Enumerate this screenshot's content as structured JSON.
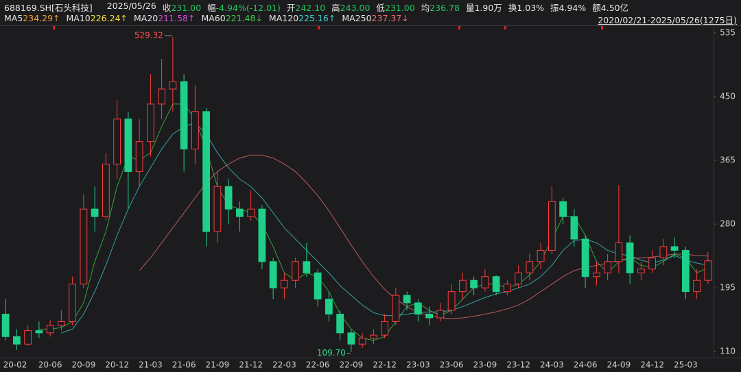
{
  "header": {
    "code": "688169.SH[石头科技]",
    "date": "2025/05/26",
    "quotes": [
      {
        "label": "收",
        "value": "231.00",
        "color": "#22c55e"
      },
      {
        "label": "幅",
        "value": "-4.94%(-12.01)",
        "color": "#22c55e"
      },
      {
        "label": "开",
        "value": "242.10",
        "color": "#22c55e"
      },
      {
        "label": "高",
        "value": "243.00",
        "color": "#22c55e"
      },
      {
        "label": "低",
        "value": "231.00",
        "color": "#22c55e"
      },
      {
        "label": "均",
        "value": "236.78",
        "color": "#22c55e"
      },
      {
        "label": "量",
        "value": "1.90万",
        "color": "#e6e6e6"
      },
      {
        "label": "换",
        "value": "1.03%",
        "color": "#e6e6e6"
      },
      {
        "label": "振",
        "value": "4.94%",
        "color": "#e6e6e6"
      },
      {
        "label": "额",
        "value": "4.50亿",
        "color": "#e6e6e6"
      }
    ],
    "range": "2020/02/21-2025/05/26(1275日)"
  },
  "chart_data": {
    "type": "candlestick",
    "categories": [
      "20-02",
      null,
      null,
      null,
      "20-06",
      null,
      null,
      "20-09",
      null,
      null,
      "20-12",
      null,
      null,
      "21-03",
      null,
      null,
      "21-06",
      null,
      null,
      "21-09",
      null,
      null,
      "21-12",
      null,
      null,
      "22-03",
      null,
      null,
      "22-06",
      null,
      null,
      "22-09",
      null,
      null,
      "22-12",
      null,
      null,
      "23-03",
      null,
      null,
      "23-06",
      null,
      null,
      "23-09",
      null,
      null,
      "23-12",
      null,
      null,
      "24-03",
      null,
      null,
      "24-06",
      null,
      null,
      "24-09",
      null,
      null,
      "24-12",
      null,
      null,
      "25-03",
      null,
      null
    ],
    "ohlc": {
      "open": [
        160,
        130,
        120,
        138,
        135,
        145,
        150,
        200,
        300,
        290,
        360,
        420,
        350,
        390,
        440,
        460,
        470,
        380,
        430,
        270,
        330,
        300,
        290,
        300,
        230,
        195,
        205,
        230,
        215,
        180,
        160,
        135,
        120,
        128,
        132,
        150,
        185,
        175,
        160,
        155,
        165,
        190,
        205,
        195,
        210,
        190,
        200,
        215,
        230,
        245,
        310,
        290,
        260,
        210,
        215,
        230,
        255,
        215,
        220,
        235,
        250,
        245,
        190,
        205
      ],
      "high": [
        180,
        140,
        145,
        150,
        152,
        165,
        210,
        320,
        330,
        375,
        445,
        430,
        420,
        480,
        500,
        529.32,
        480,
        465,
        435,
        350,
        340,
        310,
        325,
        305,
        235,
        215,
        235,
        255,
        220,
        190,
        165,
        140,
        135,
        140,
        160,
        195,
        190,
        180,
        170,
        175,
        200,
        215,
        210,
        220,
        212,
        205,
        225,
        240,
        255,
        330,
        315,
        300,
        265,
        230,
        240,
        332,
        265,
        230,
        245,
        260,
        262,
        250,
        220,
        243
      ],
      "low": [
        125,
        112,
        118,
        128,
        130,
        138,
        145,
        195,
        270,
        285,
        340,
        300,
        330,
        370,
        420,
        430,
        350,
        360,
        250,
        255,
        280,
        270,
        285,
        220,
        180,
        180,
        195,
        210,
        170,
        150,
        125,
        109.7,
        115,
        120,
        128,
        145,
        165,
        150,
        145,
        150,
        160,
        180,
        185,
        190,
        185,
        185,
        195,
        205,
        220,
        240,
        280,
        250,
        195,
        198,
        205,
        215,
        200,
        205,
        215,
        225,
        235,
        180,
        180,
        200
      ],
      "close": [
        130,
        120,
        138,
        135,
        145,
        150,
        200,
        300,
        290,
        360,
        420,
        350,
        390,
        440,
        460,
        470,
        380,
        430,
        270,
        330,
        300,
        290,
        300,
        230,
        195,
        205,
        230,
        215,
        180,
        160,
        135,
        120,
        128,
        132,
        150,
        185,
        175,
        160,
        155,
        165,
        190,
        205,
        195,
        210,
        190,
        200,
        215,
        230,
        245,
        310,
        290,
        260,
        210,
        215,
        230,
        255,
        215,
        220,
        235,
        250,
        245,
        190,
        205,
        231
      ]
    },
    "up_color": "#ff3b3b",
    "down_color": "#1fd08a",
    "max_label": "529.32",
    "min_label": "109.70",
    "series": [
      {
        "name": "MA5",
        "legend_value": "234.29↑",
        "color": "#f5a030"
      },
      {
        "name": "MA10",
        "legend_value": "226.24↑",
        "color": "#f2e23a"
      },
      {
        "name": "MA20",
        "legend_value": "211.58↑",
        "color": "#e048e0"
      },
      {
        "name": "MA60",
        "legend_value": "221.48↓",
        "color": "#3ccf4a",
        "values": [
          null,
          null,
          null,
          140,
          140,
          142,
          150,
          175,
          230,
          270,
          330,
          370,
          365,
          375,
          410,
          440,
          440,
          420,
          380,
          330,
          305,
          300,
          295,
          280,
          250,
          215,
          205,
          215,
          210,
          190,
          160,
          140,
          128,
          125,
          130,
          150,
          170,
          175,
          165,
          158,
          165,
          180,
          195,
          200,
          200,
          195,
          200,
          212,
          230,
          260,
          290,
          290,
          265,
          230,
          215,
          230,
          235,
          225,
          222,
          230,
          240,
          235,
          215,
          221.48
        ]
      },
      {
        "name": "MA120",
        "legend_value": "225.16↑",
        "color": "#3fd0d0",
        "values": [
          null,
          null,
          null,
          null,
          null,
          135,
          140,
          160,
          190,
          225,
          265,
          300,
          330,
          355,
          380,
          400,
          410,
          415,
          400,
          375,
          355,
          340,
          330,
          315,
          295,
          275,
          260,
          245,
          230,
          215,
          198,
          185,
          172,
          162,
          158,
          158,
          160,
          162,
          163,
          163,
          165,
          170,
          176,
          182,
          187,
          190,
          195,
          200,
          210,
          225,
          245,
          258,
          260,
          255,
          245,
          240,
          238,
          232,
          228,
          232,
          238,
          232,
          228,
          225.16
        ]
      },
      {
        "name": "MA250",
        "legend_value": "237.37↓",
        "color": "#f07070",
        "values": [
          null,
          null,
          null,
          null,
          null,
          null,
          null,
          null,
          null,
          null,
          null,
          null,
          218,
          235,
          255,
          275,
          295,
          315,
          335,
          350,
          360,
          368,
          372,
          372,
          368,
          360,
          350,
          335,
          318,
          298,
          275,
          252,
          230,
          210,
          193,
          180,
          170,
          162,
          158,
          155,
          154,
          155,
          157,
          160,
          163,
          167,
          172,
          180,
          190,
          200,
          210,
          218,
          222,
          225,
          228,
          232,
          234,
          235,
          236,
          238,
          240,
          240,
          238,
          237.37
        ]
      }
    ],
    "ylim": [
      102,
      544
    ],
    "yticks": [
      110,
      195,
      280,
      365,
      450,
      535
    ],
    "grid": false
  }
}
